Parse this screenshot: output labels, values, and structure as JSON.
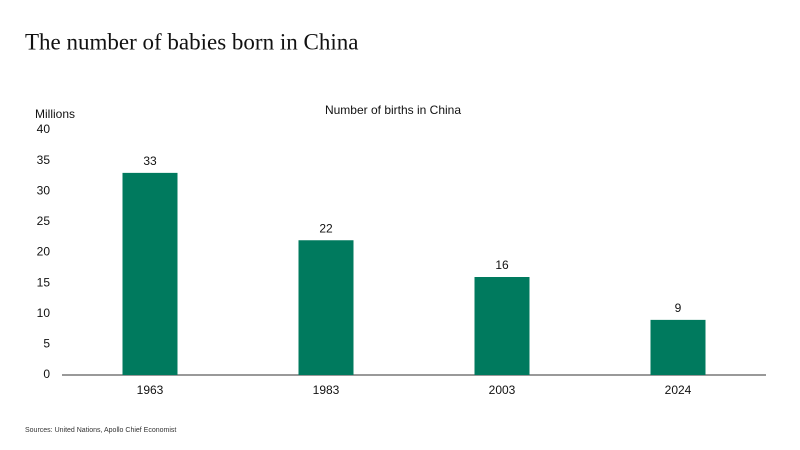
{
  "chart_data": {
    "type": "bar",
    "title": "The number of babies born in China",
    "subtitle": "Number of births in China",
    "y_label": "Millions",
    "source": "Sources: United Nations, Apollo Chief Economist",
    "categories": [
      "1963",
      "1983",
      "2003",
      "2024"
    ],
    "values": [
      33,
      22,
      16,
      9
    ],
    "color": "#007a5e",
    "ylim": [
      0,
      40
    ],
    "yticks": [
      0,
      5,
      10,
      15,
      20,
      25,
      30,
      35,
      40
    ],
    "grid": false
  }
}
